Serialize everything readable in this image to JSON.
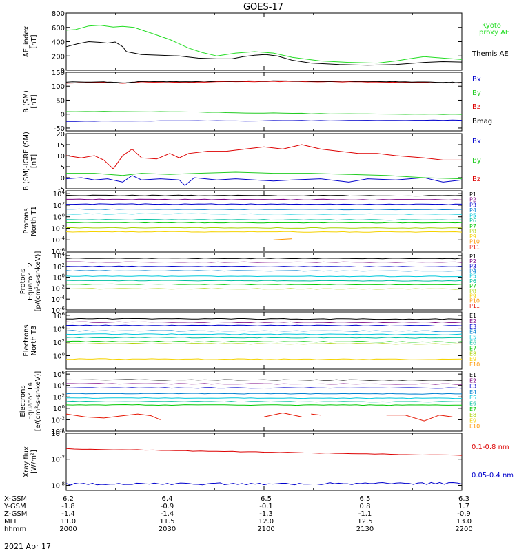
{
  "title": "GOES-17",
  "date": "2021 Apr 17",
  "colors": {
    "kyoto": "#22dd22",
    "themis": "#000000",
    "bx": "#0000cc",
    "by": "#22cc22",
    "bz": "#dd0000",
    "bmag": "#000000",
    "xray_long": "#dd0000",
    "xray_short": "#0000cc",
    "ch_colors": [
      "#000000",
      "#7a0082",
      "#0000cc",
      "#007fd0",
      "#00c8dc",
      "#00c0a0",
      "#00c800",
      "#aad200",
      "#f5d200",
      "#ff9600",
      "#e51400",
      "#c80000"
    ]
  },
  "chart_data": [
    {
      "type": "line",
      "id": "ae",
      "ylabel": "AE_index\n[nT]",
      "ylim": [
        0,
        800
      ],
      "yscale": "linear",
      "yticks": [
        "0",
        "200",
        "400",
        "600",
        "800"
      ],
      "series": [
        {
          "name": "Kyoto\nproxy AE",
          "color": "#22dd22",
          "points": [
            [
              0,
              560
            ],
            [
              5,
              570
            ],
            [
              12,
              620
            ],
            [
              18,
              630
            ],
            [
              25,
              605
            ],
            [
              30,
              615
            ],
            [
              36,
              600
            ],
            [
              45,
              520
            ],
            [
              55,
              430
            ],
            [
              65,
              310
            ],
            [
              72,
              250
            ],
            [
              80,
              200
            ],
            [
              90,
              240
            ],
            [
              100,
              260
            ],
            [
              110,
              240
            ],
            [
              120,
              180
            ],
            [
              135,
              130
            ],
            [
              150,
              110
            ],
            [
              165,
              100
            ],
            [
              175,
              130
            ],
            [
              182,
              160
            ],
            [
              190,
              190
            ],
            [
              200,
              170
            ],
            [
              210,
              150
            ]
          ]
        },
        {
          "name": "Themis AE",
          "color": "#000000",
          "points": [
            [
              0,
              330
            ],
            [
              6,
              370
            ],
            [
              12,
              400
            ],
            [
              18,
              390
            ],
            [
              22,
              380
            ],
            [
              26,
              395
            ],
            [
              30,
              330
            ],
            [
              32,
              260
            ],
            [
              40,
              220
            ],
            [
              50,
              210
            ],
            [
              60,
              200
            ],
            [
              70,
              170
            ],
            [
              80,
              160
            ],
            [
              88,
              160
            ],
            [
              94,
              190
            ],
            [
              100,
              210
            ],
            [
              106,
              220
            ],
            [
              112,
              200
            ],
            [
              120,
              140
            ],
            [
              130,
              100
            ],
            [
              145,
              80
            ],
            [
              160,
              70
            ],
            [
              175,
              80
            ],
            [
              190,
              110
            ],
            [
              200,
              120
            ],
            [
              210,
              115
            ]
          ]
        }
      ]
    },
    {
      "type": "line",
      "id": "bsm",
      "ylabel": "B (SM)\n[nT]",
      "ylim": [
        -60,
        150
      ],
      "yscale": "linear",
      "yticks": [
        "-50",
        "0",
        "50",
        "100",
        "150"
      ],
      "series": [
        {
          "name": "Bx",
          "color": "#0000cc",
          "points": [
            [
              0,
              -25
            ],
            [
              30,
              -25
            ],
            [
              60,
              -24
            ],
            [
              90,
              -24
            ],
            [
              120,
              -23
            ],
            [
              150,
              -23
            ],
            [
              180,
              -22
            ],
            [
              210,
              -22
            ]
          ]
        },
        {
          "name": "By",
          "color": "#22cc22",
          "points": [
            [
              0,
              10
            ],
            [
              30,
              9
            ],
            [
              60,
              8
            ],
            [
              90,
              5
            ],
            [
              120,
              3
            ],
            [
              150,
              1
            ],
            [
              180,
              0
            ],
            [
              210,
              -1
            ]
          ]
        },
        {
          "name": "Bz",
          "color": "#dd0000",
          "points": [
            [
              0,
              112
            ],
            [
              20,
              114
            ],
            [
              30,
              110
            ],
            [
              40,
              116
            ],
            [
              60,
              114
            ],
            [
              80,
              116
            ],
            [
              100,
              117
            ],
            [
              120,
              117
            ],
            [
              140,
              116
            ],
            [
              160,
              115
            ],
            [
              180,
              114
            ],
            [
              200,
              112
            ],
            [
              210,
              112
            ]
          ]
        },
        {
          "name": "Bmag",
          "color": "#000000",
          "points": [
            [
              0,
              115
            ],
            [
              20,
              116
            ],
            [
              30,
              112
            ],
            [
              40,
              117
            ],
            [
              60,
              116
            ],
            [
              80,
              118
            ],
            [
              100,
              119
            ],
            [
              120,
              119
            ],
            [
              140,
              118
            ],
            [
              160,
              117
            ],
            [
              180,
              116
            ],
            [
              200,
              114
            ],
            [
              210,
              114
            ]
          ]
        }
      ]
    },
    {
      "type": "line",
      "id": "bigrf",
      "ylabel": "B (SM)-IGRF (SM)\n[nT]",
      "ylim": [
        -5,
        20
      ],
      "yscale": "linear",
      "yticks": [
        "-5",
        "0",
        "5",
        "10",
        "15",
        "20"
      ],
      "series": [
        {
          "name": "Bx",
          "color": "#0000cc",
          "points": [
            [
              0,
              -0.5
            ],
            [
              8,
              0
            ],
            [
              15,
              -1
            ],
            [
              22,
              -0.5
            ],
            [
              30,
              -2
            ],
            [
              35,
              1
            ],
            [
              40,
              -1
            ],
            [
              50,
              -0.5
            ],
            [
              60,
              -1
            ],
            [
              63,
              -3.5
            ],
            [
              68,
              0
            ],
            [
              80,
              -1
            ],
            [
              90,
              -0.5
            ],
            [
              100,
              -1
            ],
            [
              110,
              -1.5
            ],
            [
              120,
              -1
            ],
            [
              135,
              -0.5
            ],
            [
              150,
              -2
            ],
            [
              160,
              -0.5
            ],
            [
              175,
              -1
            ],
            [
              190,
              0
            ],
            [
              200,
              -2
            ],
            [
              210,
              -1
            ]
          ]
        },
        {
          "name": "By",
          "color": "#22cc22",
          "points": [
            [
              0,
              2
            ],
            [
              15,
              2
            ],
            [
              30,
              1
            ],
            [
              40,
              2
            ],
            [
              55,
              1.5
            ],
            [
              70,
              2
            ],
            [
              90,
              2.5
            ],
            [
              110,
              2
            ],
            [
              130,
              2
            ],
            [
              150,
              1.5
            ],
            [
              170,
              1
            ],
            [
              190,
              0
            ],
            [
              210,
              -0.5
            ]
          ]
        },
        {
          "name": "Bz",
          "color": "#dd0000",
          "points": [
            [
              0,
              10
            ],
            [
              8,
              9
            ],
            [
              15,
              10
            ],
            [
              20,
              8
            ],
            [
              25,
              4
            ],
            [
              30,
              10
            ],
            [
              35,
              13
            ],
            [
              40,
              9
            ],
            [
              48,
              8.5
            ],
            [
              55,
              11
            ],
            [
              60,
              9
            ],
            [
              65,
              11
            ],
            [
              75,
              12
            ],
            [
              85,
              12
            ],
            [
              95,
              13
            ],
            [
              105,
              14
            ],
            [
              115,
              13
            ],
            [
              125,
              15
            ],
            [
              135,
              13
            ],
            [
              145,
              12
            ],
            [
              155,
              11
            ],
            [
              165,
              11
            ],
            [
              175,
              10
            ],
            [
              190,
              9
            ],
            [
              200,
              8
            ],
            [
              210,
              8
            ]
          ]
        }
      ]
    },
    {
      "type": "line",
      "id": "p_t1",
      "ylabel": "Protons\nNorth T1",
      "yscale": "log",
      "ylim": [
        -6,
        4.5
      ],
      "yticks": [
        "10^4",
        "10^2",
        "10^0",
        "10^-2",
        "10^-4",
        "10^-6"
      ],
      "legend": [
        "P1",
        "P2",
        "P3",
        "P4",
        "P5",
        "P6",
        "P7",
        "P8",
        "P9",
        "P10",
        "P11"
      ],
      "levels": [
        3.7,
        3.0,
        2.2,
        1.3,
        0.5,
        -0.5,
        -1.0,
        -1.9,
        -2.6
      ],
      "fragment": {
        "start": 110,
        "end": 120,
        "log_start": -4.0,
        "log_end": -3.8
      }
    },
    {
      "type": "line",
      "id": "p_t2",
      "ylabel": "Protons\nEquator T2\n[p/(cm²-s-sr-keV)]",
      "yscale": "log",
      "ylim": [
        -6,
        4.5
      ],
      "yticks": [
        "10^4",
        "10^2",
        "10^0",
        "10^-2",
        "10^-4",
        "10^-6"
      ],
      "legend": [
        "P1",
        "P2",
        "P3",
        "P4",
        "P5",
        "P6",
        "P7",
        "P8",
        "P9",
        "P10",
        "P11"
      ],
      "levels": [
        3.5,
        2.8,
        2.0,
        1.2,
        0.2,
        -0.6,
        -1.3,
        -2.1
      ]
    },
    {
      "type": "line",
      "id": "e_t3",
      "ylabel": "Electrons\nNorth T3",
      "yscale": "log",
      "ylim": [
        -2,
        6.5
      ],
      "yticks": [
        "10^6",
        "10^4",
        "10^2",
        "10^0"
      ],
      "legend": [
        "E1",
        "E2",
        "E3",
        "E4",
        "E5",
        "E6",
        "E7",
        "E8",
        "E9",
        "E10"
      ],
      "levels": [
        5.5,
        5.0,
        4.5,
        3.7,
        3.2,
        2.7,
        2.1,
        1.8,
        -0.5
      ]
    },
    {
      "type": "line",
      "id": "e_t4",
      "ylabel": "Electrons\nEquator T4\n[e/(cm²-s-sr-keV)]",
      "yscale": "log",
      "ylim": [
        -4,
        6.5
      ],
      "yticks": [
        "10^6",
        "10^4",
        "10^2",
        "10^0",
        "10^-2",
        "10^-4"
      ],
      "legend": [
        "E1",
        "E2",
        "E3",
        "E4",
        "E5",
        "E6",
        "E7",
        "E8",
        "E9",
        "E10"
      ],
      "levels": [
        5.0,
        4.3,
        3.6,
        2.6,
        1.8,
        1.2,
        0.6
      ],
      "fragments": [
        [
          [
            0,
            -1.0
          ],
          [
            10,
            -1.5
          ],
          [
            20,
            -1.7
          ],
          [
            30,
            -1.3
          ],
          [
            38,
            -1.0
          ],
          [
            45,
            -1.3
          ],
          [
            50,
            -2.0
          ]
        ],
        [
          [
            105,
            -1.5
          ],
          [
            115,
            -0.8
          ],
          [
            125,
            -1.5
          ]
        ],
        [
          [
            130,
            -1.0
          ],
          [
            135,
            -1.2
          ]
        ],
        [
          [
            170,
            -1.2
          ],
          [
            180,
            -1.2
          ],
          [
            190,
            -2.2
          ],
          [
            198,
            -1.2
          ],
          [
            205,
            -1.5
          ]
        ]
      ]
    },
    {
      "type": "line",
      "id": "xray",
      "ylabel": "Xray flux\n[W/m²]",
      "yscale": "log",
      "ylim": [
        -8.2,
        -6
      ],
      "yticks": [
        "10^-6",
        "10^-7",
        "10^-8"
      ],
      "series": [
        {
          "name": "0.1-0.8 nm",
          "color": "#dd0000",
          "start": -6.6,
          "end": -6.85
        },
        {
          "name": "0.05-0.4 nm",
          "color": "#0000cc",
          "base": -7.95
        }
      ]
    }
  ],
  "orbit": {
    "labels": [
      "X-GSM",
      "Y-GSM",
      "Z-GSM",
      "MLT",
      "hhmm"
    ],
    "columns": [
      [
        "6.2",
        "-1.8",
        "-1.4",
        "11.0",
        "2000"
      ],
      [
        "6.4",
        "-0.9",
        "-1.4",
        "11.5",
        "2030"
      ],
      [
        "6.5",
        "-0.1",
        "-1.3",
        "12.0",
        "2100"
      ],
      [
        "6.5",
        "0.8",
        "-1.1",
        "12.5",
        "2130"
      ],
      [
        "6.3",
        "1.7",
        "-0.9",
        "13.0",
        "2200"
      ]
    ]
  }
}
